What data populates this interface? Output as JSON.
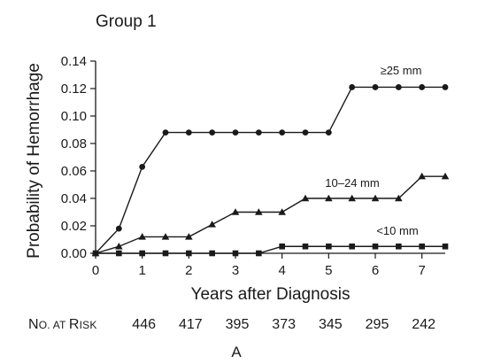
{
  "chart_data": {
    "type": "line",
    "title": "Group 1",
    "xlabel": "Years after Diagnosis",
    "ylabel": "Probability of Hemorrhage",
    "xlim": [
      0,
      7.5
    ],
    "ylim": [
      0,
      0.14
    ],
    "xticks": [
      "0",
      "1",
      "2",
      "3",
      "4",
      "5",
      "6",
      "7"
    ],
    "yticks": [
      "0.00",
      "0.02",
      "0.04",
      "0.06",
      "0.08",
      "0.10",
      "0.12",
      "0.14"
    ],
    "series": [
      {
        "name": "≥25 mm",
        "marker": "circle",
        "x": [
          0,
          0.5,
          1,
          1.5,
          2,
          2.5,
          3,
          3.5,
          4,
          4.5,
          5,
          5.5,
          6,
          6.5,
          7,
          7.5
        ],
        "y": [
          0,
          0.018,
          0.063,
          0.088,
          0.088,
          0.088,
          0.088,
          0.088,
          0.088,
          0.088,
          0.088,
          0.121,
          0.121,
          0.121,
          0.121,
          0.121
        ]
      },
      {
        "name": "10–24 mm",
        "marker": "triangle",
        "x": [
          0,
          0.5,
          1,
          1.5,
          2,
          2.5,
          3,
          3.5,
          4,
          4.5,
          5,
          5.5,
          6,
          6.5,
          7,
          7.5
        ],
        "y": [
          0,
          0.005,
          0.012,
          0.012,
          0.012,
          0.021,
          0.03,
          0.03,
          0.03,
          0.04,
          0.04,
          0.04,
          0.04,
          0.04,
          0.056,
          0.056
        ]
      },
      {
        "name": "<10 mm",
        "marker": "square",
        "x": [
          0,
          0.5,
          1,
          1.5,
          2,
          2.5,
          3,
          3.5,
          4,
          4.5,
          5,
          5.5,
          6,
          6.5,
          7,
          7.5
        ],
        "y": [
          0,
          0,
          0,
          0,
          0,
          0,
          0,
          0,
          0.005,
          0.005,
          0.005,
          0.005,
          0.005,
          0.005,
          0.005,
          0.005
        ]
      }
    ]
  },
  "risk_table": {
    "label_first": "N",
    "label_small_1": "O. AT ",
    "label_mid": "R",
    "label_small_2": "ISK",
    "values": [
      {
        "year": "1",
        "count": "446"
      },
      {
        "year": "2",
        "count": "417"
      },
      {
        "year": "3",
        "count": "395"
      },
      {
        "year": "4",
        "count": "373"
      },
      {
        "year": "5",
        "count": "345"
      },
      {
        "year": "6",
        "count": "295"
      },
      {
        "year": "7",
        "count": "242"
      }
    ]
  },
  "panel_label": "A"
}
